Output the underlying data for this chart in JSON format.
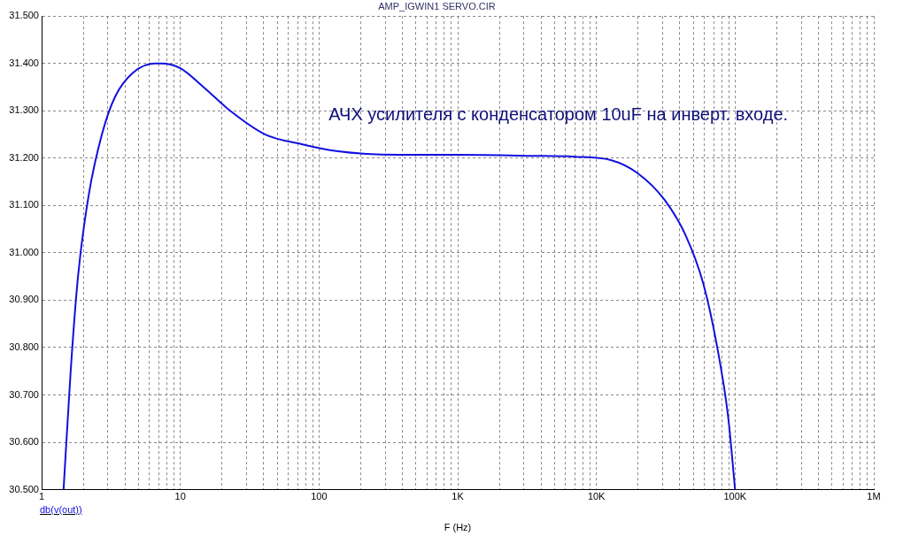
{
  "chart_data": {
    "type": "line",
    "title": "AMP_IGWIN1 SERVO.CIR",
    "xlabel": "F (Hz)",
    "annotations": [
      "АЧХ усилителя с конденсатором 10uF на инверт. входе."
    ],
    "log": "x",
    "grid": true,
    "legend": "bottom left",
    "marker": "none",
    "line_style": "solid",
    "xlim": [
      1,
      1000000
    ],
    "ylim": [
      30.5,
      31.5
    ],
    "xticks": [
      {
        "value": 1,
        "label": "1"
      },
      {
        "value": 2,
        "label": null
      },
      {
        "value": 3,
        "label": null
      },
      {
        "value": 4,
        "label": null
      },
      {
        "value": 5,
        "label": null
      },
      {
        "value": 6,
        "label": null
      },
      {
        "value": 7,
        "label": null
      },
      {
        "value": 8,
        "label": null
      },
      {
        "value": 9,
        "label": null
      },
      {
        "value": 10,
        "label": "10"
      },
      {
        "value": 20,
        "label": null
      },
      {
        "value": 30,
        "label": null
      },
      {
        "value": 40,
        "label": null
      },
      {
        "value": 50,
        "label": null
      },
      {
        "value": 60,
        "label": null
      },
      {
        "value": 70,
        "label": null
      },
      {
        "value": 80,
        "label": null
      },
      {
        "value": 90,
        "label": null
      },
      {
        "value": 100,
        "label": "100"
      },
      {
        "value": 200,
        "label": null
      },
      {
        "value": 300,
        "label": null
      },
      {
        "value": 400,
        "label": null
      },
      {
        "value": 500,
        "label": null
      },
      {
        "value": 600,
        "label": null
      },
      {
        "value": 700,
        "label": null
      },
      {
        "value": 800,
        "label": null
      },
      {
        "value": 900,
        "label": null
      },
      {
        "value": 1000,
        "label": "1K"
      },
      {
        "value": 2000,
        "label": null
      },
      {
        "value": 3000,
        "label": null
      },
      {
        "value": 4000,
        "label": null
      },
      {
        "value": 5000,
        "label": null
      },
      {
        "value": 6000,
        "label": null
      },
      {
        "value": 7000,
        "label": null
      },
      {
        "value": 8000,
        "label": null
      },
      {
        "value": 9000,
        "label": null
      },
      {
        "value": 10000,
        "label": "10K"
      },
      {
        "value": 20000,
        "label": null
      },
      {
        "value": 30000,
        "label": null
      },
      {
        "value": 40000,
        "label": null
      },
      {
        "value": 50000,
        "label": null
      },
      {
        "value": 60000,
        "label": null
      },
      {
        "value": 70000,
        "label": null
      },
      {
        "value": 80000,
        "label": null
      },
      {
        "value": 90000,
        "label": null
      },
      {
        "value": 100000,
        "label": "100K"
      },
      {
        "value": 200000,
        "label": null
      },
      {
        "value": 300000,
        "label": null
      },
      {
        "value": 400000,
        "label": null
      },
      {
        "value": 500000,
        "label": null
      },
      {
        "value": 600000,
        "label": null
      },
      {
        "value": 700000,
        "label": null
      },
      {
        "value": 800000,
        "label": null
      },
      {
        "value": 900000,
        "label": null
      },
      {
        "value": 1000000,
        "label": "1M"
      }
    ],
    "yticks": [
      {
        "value": 30.5,
        "label": "30.500"
      },
      {
        "value": 30.6,
        "label": "30.600"
      },
      {
        "value": 30.7,
        "label": "30.700"
      },
      {
        "value": 30.8,
        "label": "30.800"
      },
      {
        "value": 30.9,
        "label": "30.900"
      },
      {
        "value": 31.0,
        "label": "31.000"
      },
      {
        "value": 31.1,
        "label": "31.100"
      },
      {
        "value": 31.2,
        "label": "31.200"
      },
      {
        "value": 31.3,
        "label": "31.300"
      },
      {
        "value": 31.4,
        "label": "31.400"
      },
      {
        "value": 31.5,
        "label": "31.500"
      }
    ],
    "x": [
      1.44,
      1.62,
      1.83,
      2.18,
      2.72,
      3.39,
      4.54,
      6.56,
      7.2,
      10,
      14.7,
      22.9,
      41,
      74,
      133,
      372,
      1000,
      3400,
      7000,
      12700,
      19900,
      31000,
      44000,
      59000,
      74000,
      89000,
      100000
    ],
    "series": [
      {
        "name": "db(v(out))",
        "color": "#1010e0",
        "values": [
          30.5,
          30.75,
          30.95,
          31.12,
          31.25,
          31.33,
          31.38,
          31.4,
          31.4,
          31.39,
          31.35,
          31.3,
          31.25,
          31.23,
          31.215,
          31.207,
          31.207,
          31.205,
          31.203,
          31.196,
          31.168,
          31.112,
          31.037,
          30.935,
          30.804,
          30.655,
          30.5
        ]
      }
    ]
  }
}
